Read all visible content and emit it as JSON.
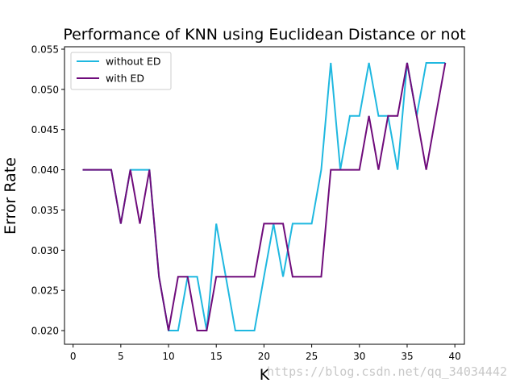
{
  "chart_data": {
    "type": "line",
    "title": "Performance of KNN using Euclidean Distance or not",
    "xlabel": "K",
    "ylabel": "Error Rate",
    "xlim": [
      -0.9,
      41
    ],
    "ylim": [
      0.0183,
      0.0553
    ],
    "xticks": [
      0,
      5,
      10,
      15,
      20,
      25,
      30,
      35,
      40
    ],
    "xtick_labels": [
      "0",
      "5",
      "10",
      "15",
      "20",
      "25",
      "30",
      "35",
      "40"
    ],
    "yticks": [
      0.02,
      0.025,
      0.03,
      0.035,
      0.04,
      0.045,
      0.05,
      0.055
    ],
    "ytick_labels": [
      "0.020",
      "0.025",
      "0.030",
      "0.035",
      "0.040",
      "0.045",
      "0.050",
      "0.055"
    ],
    "grid": false,
    "legend_position": "top-left",
    "x": [
      1,
      2,
      3,
      4,
      5,
      6,
      7,
      8,
      9,
      10,
      11,
      12,
      13,
      14,
      15,
      16,
      17,
      18,
      19,
      20,
      21,
      22,
      23,
      24,
      25,
      26,
      27,
      28,
      29,
      30,
      31,
      32,
      33,
      34,
      35,
      36,
      37,
      38,
      39
    ],
    "series": [
      {
        "name": "without ED",
        "color": "#1fb8e0",
        "values": [
          0.04,
          0.04,
          0.04,
          0.04,
          0.0333,
          0.04,
          0.04,
          0.04,
          0.0267,
          0.02,
          0.02,
          0.0267,
          0.0267,
          0.02,
          0.0333,
          0.0267,
          0.02,
          0.02,
          0.02,
          0.0267,
          0.0333,
          0.0267,
          0.0333,
          0.0333,
          0.0333,
          0.04,
          0.0533,
          0.04,
          0.0467,
          0.0467,
          0.0533,
          0.0467,
          0.0467,
          0.04,
          0.0533,
          0.0467,
          0.0533,
          0.0533,
          0.0533
        ]
      },
      {
        "name": "with ED",
        "color": "#6f0c7b",
        "values": [
          0.04,
          0.04,
          0.04,
          0.04,
          0.0333,
          0.04,
          0.0333,
          0.04,
          0.0267,
          0.02,
          0.0267,
          0.0267,
          0.02,
          0.02,
          0.0267,
          0.0267,
          0.0267,
          0.0267,
          0.0267,
          0.0333,
          0.0333,
          0.0333,
          0.0267,
          0.0267,
          0.0267,
          0.0267,
          0.04,
          0.04,
          0.04,
          0.04,
          0.0467,
          0.04,
          0.0467,
          0.0467,
          0.0533,
          0.0467,
          0.04,
          0.0467,
          0.0533
        ]
      }
    ]
  },
  "watermark": "https://blog.csdn.net/qq_34034442"
}
